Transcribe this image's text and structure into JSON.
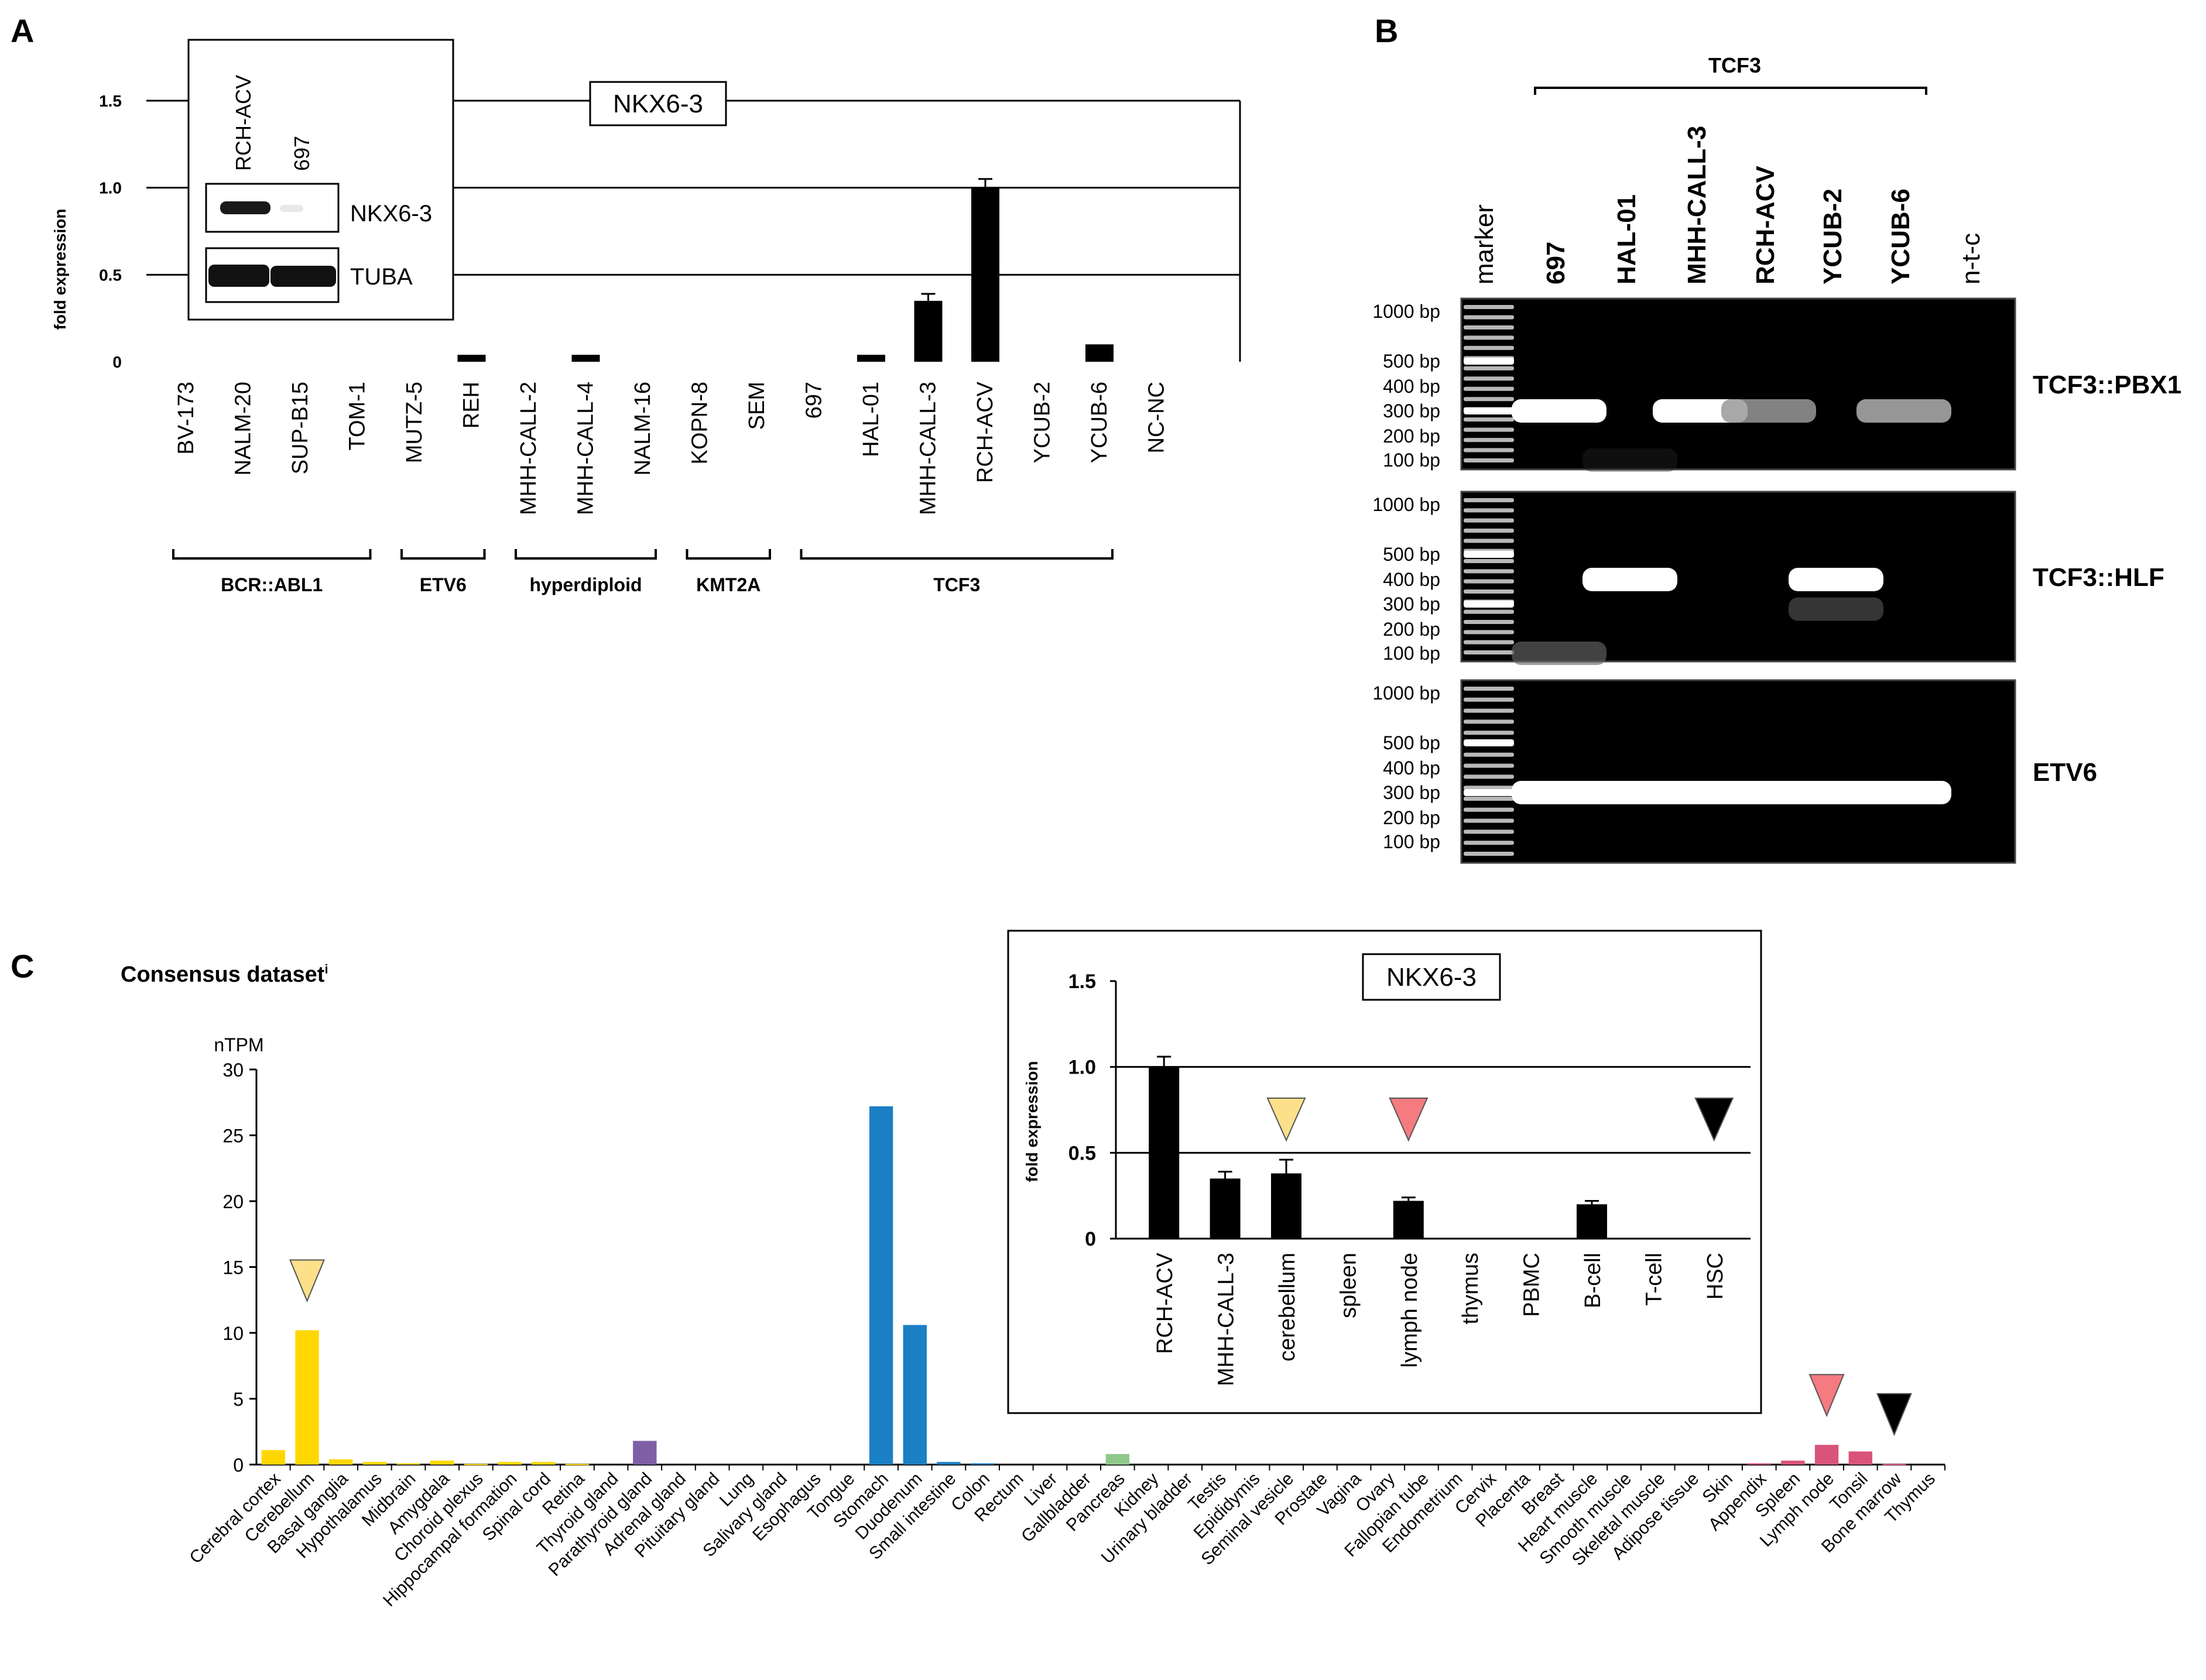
{
  "panels": {
    "a": "A",
    "b": "B",
    "c": "C"
  },
  "chart_data": [
    {
      "type": "bar",
      "panel": "A",
      "title": "NKX6-3",
      "ylabel": "fold expression",
      "ylim": [
        0,
        1.5
      ],
      "yticks": [
        "0",
        "0.5",
        "1.0",
        "1.5"
      ],
      "ytick_values": [
        0,
        0.5,
        1.0,
        1.5
      ],
      "grid": true,
      "categories": [
        "BV-173",
        "NALM-20",
        "SUP-B15",
        "TOM-1",
        "MUTZ-5",
        "REH",
        "MHH-CALL-2",
        "MHH-CALL-4",
        "NALM-16",
        "KOPN-8",
        "SEM",
        "697",
        "HAL-01",
        "MHH-CALL-3",
        "RCH-ACV",
        "YCUB-2",
        "YCUB-6",
        "NC-NC"
      ],
      "values": [
        0,
        0,
        0,
        0,
        0,
        0.04,
        0,
        0.04,
        0,
        0,
        0,
        0,
        0.04,
        0.35,
        1.0,
        0,
        0.1,
        0
      ],
      "errors": [
        0,
        0,
        0,
        0,
        0,
        0,
        0,
        0,
        0,
        0,
        0,
        0,
        0,
        0.04,
        0.05,
        0,
        0,
        0
      ],
      "groups": [
        {
          "label": "BCR::ABL1",
          "from": 0,
          "to": 3
        },
        {
          "label": "ETV6",
          "from": 4,
          "to": 5
        },
        {
          "label": "hyperdiploid",
          "from": 6,
          "to": 8
        },
        {
          "label": "KMT2A",
          "from": 9,
          "to": 10
        },
        {
          "label": "TCF3",
          "from": 11,
          "to": 16
        }
      ],
      "western_blot": {
        "lanes": [
          "RCH-ACV",
          "697"
        ],
        "bands": [
          "NKX6-3",
          "TUBA"
        ]
      }
    },
    {
      "type": "bar",
      "panel": "C-inset",
      "title": "NKX6-3",
      "ylabel": "fold expression",
      "ylim": [
        0,
        1.5
      ],
      "yticks": [
        "0",
        "0.5",
        "1.0",
        "1.5"
      ],
      "ytick_values": [
        0,
        0.5,
        1.0,
        1.5
      ],
      "categories": [
        "RCH-ACV",
        "MHH-CALL-3",
        "cerebellum",
        "spleen",
        "lymph node",
        "thymus",
        "PBMC",
        "B-cell",
        "T-cell",
        "HSC"
      ],
      "values": [
        1.0,
        0.35,
        0.38,
        0,
        0.22,
        0,
        0,
        0.2,
        0,
        0
      ],
      "errors": [
        0.06,
        0.04,
        0.08,
        0,
        0.02,
        0,
        0,
        0.02,
        0,
        0
      ],
      "markers": [
        {
          "index": 2,
          "color": "#fde08a"
        },
        {
          "index": 4,
          "color": "#f57b80"
        },
        {
          "index": 9,
          "color": "#000000"
        }
      ]
    },
    {
      "type": "bar",
      "panel": "C",
      "title": "Consensus dataset",
      "title_superscript": "i",
      "ylabel": "nTPM",
      "ylim": [
        0,
        30
      ],
      "yticks": [
        "0",
        "5",
        "10",
        "15",
        "20",
        "25",
        "30"
      ],
      "ytick_values": [
        0,
        5,
        10,
        15,
        20,
        25,
        30
      ],
      "categories": [
        "Cerebral cortex",
        "Cerebellum",
        "Basal ganglia",
        "Hypothalamus",
        "Midbrain",
        "Amygdala",
        "Choroid plexus",
        "Hippocampal formation",
        "Spinal cord",
        "Retina",
        "Thyroid gland",
        "Parathyroid gland",
        "Adrenal gland",
        "Pituitary gland",
        "Lung",
        "Salivary gland",
        "Esophagus",
        "Tongue",
        "Stomach",
        "Duodenum",
        "Small intestine",
        "Colon",
        "Rectum",
        "Liver",
        "Gallbladder",
        "Pancreas",
        "Kidney",
        "Urinary bladder",
        "Testis",
        "Epididymis",
        "Seminal vesicle",
        "Prostate",
        "Vagina",
        "Ovary",
        "Fallopian tube",
        "Endometrium",
        "Cervix",
        "Placenta",
        "Breast",
        "Heart muscle",
        "Smooth muscle",
        "Skeletal muscle",
        "Adipose tissue",
        "Skin",
        "Appendix",
        "Spleen",
        "Lymph node",
        "Tonsil",
        "Bone marrow",
        "Thymus"
      ],
      "values": [
        1.1,
        10.2,
        0.4,
        0.2,
        0.1,
        0.3,
        0.05,
        0.2,
        0.2,
        0.05,
        0,
        1.8,
        0,
        0,
        0,
        0,
        0,
        0,
        27.2,
        10.6,
        0.2,
        0.1,
        0,
        0,
        0,
        0.8,
        0,
        0,
        0,
        0,
        0,
        0,
        0,
        0,
        0,
        0,
        0,
        0,
        0,
        0,
        0,
        0,
        0,
        0,
        0.1,
        0.3,
        1.5,
        1.0,
        0.05,
        0
      ],
      "colors": [
        "#ffd700",
        "#ffd700",
        "#ffd700",
        "#ffd700",
        "#ffd700",
        "#ffd700",
        "#ffd700",
        "#ffd700",
        "#ffd700",
        "#ffd700",
        "#7e5fa6",
        "#7e5fa6",
        "#7e5fa6",
        "#7e5fa6",
        "#5fa8d9",
        "#1b7fc4",
        "#1b7fc4",
        "#1b7fc4",
        "#1b7fc4",
        "#1b7fc4",
        "#1b7fc4",
        "#1b7fc4",
        "#1b7fc4",
        "#1b7fc4",
        "#1b7fc4",
        "#8fc98a",
        "#e0b0c0",
        "#e0b0c0",
        "#e0b0c0",
        "#e0b0c0",
        "#e0b0c0",
        "#e0b0c0",
        "#e0b0c0",
        "#e0b0c0",
        "#e0b0c0",
        "#e0b0c0",
        "#e0b0c0",
        "#e0b0c0",
        "#e0b0c0",
        "#e0b0c0",
        "#e0b0c0",
        "#e0b0c0",
        "#e0b0c0",
        "#e0b0c0",
        "#d9547a",
        "#d9547a",
        "#d9547a",
        "#d9547a",
        "#d9547a",
        "#d9547a"
      ],
      "markers": [
        {
          "index": 1,
          "color": "#fde08a"
        },
        {
          "index": 46,
          "color": "#f57b80"
        },
        {
          "index": 48,
          "color": "#000000"
        }
      ]
    }
  ],
  "gel": {
    "group_label": "TCF3",
    "lanes": [
      "marker",
      "697",
      "HAL-01",
      "MHH-CALL-3",
      "RCH-ACV",
      "YCUB-2",
      "YCUB-6",
      "n-t-c"
    ],
    "lane_bold": [
      false,
      true,
      true,
      true,
      true,
      true,
      true,
      false
    ],
    "panels": [
      {
        "name": "TCF3::PBX1",
        "ladder": [
          "1000 bp",
          "500 bp",
          "400 bp",
          "300 bp",
          "200 bp",
          "100 bp"
        ],
        "bands": [
          {
            "lane": 1,
            "bp": 300,
            "intensity": 1.0
          },
          {
            "lane": 3,
            "bp": 300,
            "intensity": 1.0
          },
          {
            "lane": 4,
            "bp": 300,
            "intensity": 0.6
          },
          {
            "lane": 6,
            "bp": 300,
            "intensity": 0.65
          },
          {
            "lane": 2,
            "bp": 100,
            "intensity": 0.15
          }
        ]
      },
      {
        "name": "TCF3::HLF",
        "ladder": [
          "1000 bp",
          "500 bp",
          "400 bp",
          "300 bp",
          "200 bp",
          "100 bp"
        ],
        "bands": [
          {
            "lane": 2,
            "bp": 400,
            "intensity": 1.0
          },
          {
            "lane": 5,
            "bp": 400,
            "intensity": 1.0
          },
          {
            "lane": 5,
            "bp": 280,
            "intensity": 0.35
          },
          {
            "lane": 1,
            "bp": 100,
            "intensity": 0.4
          }
        ]
      },
      {
        "name": "ETV6",
        "ladder": [
          "1000 bp",
          "500 bp",
          "400 bp",
          "300 bp",
          "200 bp",
          "100 bp"
        ],
        "bands": [
          {
            "lane": 1,
            "bp": 300,
            "intensity": 1.0
          },
          {
            "lane": 2,
            "bp": 300,
            "intensity": 1.0
          },
          {
            "lane": 3,
            "bp": 300,
            "intensity": 1.0
          },
          {
            "lane": 4,
            "bp": 300,
            "intensity": 1.0
          },
          {
            "lane": 5,
            "bp": 300,
            "intensity": 1.0
          },
          {
            "lane": 6,
            "bp": 300,
            "intensity": 1.0
          }
        ]
      }
    ]
  }
}
